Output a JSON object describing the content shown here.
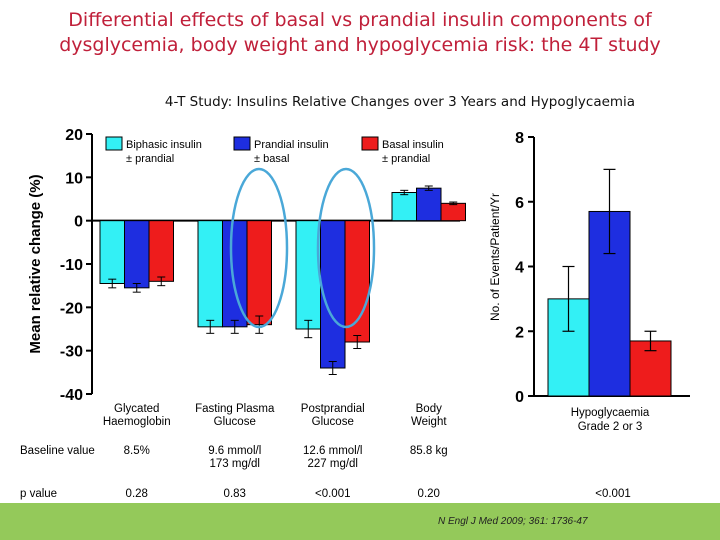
{
  "slide": {
    "title_line1": "Differential effects of basal vs prandial insulin components of",
    "title_line2": "dysglycemia, body weight and hypoglycemia risk: the 4T study",
    "citation": "N Engl J Med 2009; 361: 1736-47"
  },
  "colors": {
    "biphasic": "#33f0f5",
    "prandial": "#1e2ee0",
    "basal": "#ee1c1c",
    "title": "#c0203a",
    "footer": "#94c95a",
    "highlight": "#4aa8d8"
  },
  "chart_data": [
    {
      "type": "bar",
      "title": "4-T Study: Insulins Relative Changes over 3 Years and Hypoglycaemia",
      "ylabel": "Mean relative change (%)",
      "ylim": [
        -40,
        20
      ],
      "yticks": [
        20,
        10,
        0,
        -10,
        -20,
        -30,
        -40
      ],
      "ytick_labels": [
        "20",
        "10",
        "0",
        "-10",
        "-20",
        "-30",
        "-40"
      ],
      "categories": [
        {
          "line1": "Glycated",
          "line2": "Haemoglobin"
        },
        {
          "line1": "Fasting Plasma",
          "line2": "Glucose"
        },
        {
          "line1": "Postprandial",
          "line2": "Glucose"
        },
        {
          "line1": "Body",
          "line2": "Weight"
        }
      ],
      "series": [
        {
          "name": "Biphasic insulin",
          "sub": "± prandial",
          "values": [
            -14.5,
            -24.5,
            -25,
            6.5
          ],
          "errors": [
            1,
            1.5,
            2,
            0.5
          ]
        },
        {
          "name": "Prandial insulin",
          "sub": "± basal",
          "values": [
            -15.5,
            -24.5,
            -34,
            7.5
          ],
          "errors": [
            1,
            1.5,
            1.5,
            0.5
          ]
        },
        {
          "name": "Basal insulin",
          "sub": "± prandial",
          "values": [
            -14,
            -24,
            -28,
            4
          ],
          "errors": [
            1,
            2,
            1.5,
            0.3
          ]
        }
      ],
      "baseline_label": "Baseline value",
      "baseline_values": [
        {
          "line1": "8.5%",
          "line2": ""
        },
        {
          "line1": "9.6 mmol/l",
          "line2": "173 mg/dl"
        },
        {
          "line1": "12.6 mmol/l",
          "line2": "227 mg/dl"
        },
        {
          "line1": "85.8 kg",
          "line2": ""
        }
      ],
      "pvalue_label": "p value",
      "pvalues": [
        "0.28",
        "0.83",
        "<0.001",
        "0.20"
      ],
      "highlighted_series": "Basal insulin"
    },
    {
      "type": "bar",
      "ylabel": "No. of Events/Patient/Yr",
      "ylim": [
        0,
        8
      ],
      "yticks": [
        0,
        2,
        4,
        6,
        8
      ],
      "ytick_labels": [
        "0",
        "2",
        "4",
        "6",
        "8"
      ],
      "categories": [
        {
          "line1": "Hypoglycaemia",
          "line2": "Grade 2 or 3"
        }
      ],
      "series": [
        {
          "name": "Biphasic insulin",
          "values": [
            3.0
          ],
          "errors": [
            1.0
          ]
        },
        {
          "name": "Prandial insulin",
          "values": [
            5.7
          ],
          "errors": [
            1.3
          ]
        },
        {
          "name": "Basal insulin",
          "values": [
            1.7
          ],
          "errors": [
            0.3
          ]
        }
      ],
      "pvalue": "<0.001"
    }
  ]
}
